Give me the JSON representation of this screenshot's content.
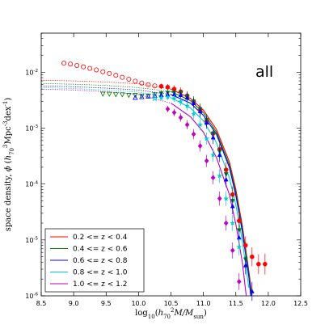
{
  "chart_data": {
    "type": "scatter",
    "title": "",
    "annotation": "all",
    "xlabel": "log$_{10}$($h_{70}^2M/M_{\\rm sun}$)",
    "ylabel": "space density, $\\phi$ ($h_{70}^3$Mpc$^{-3}$dex$^{-1}$)",
    "xlim": [
      8.5,
      12.5
    ],
    "ylim": [
      1e-06,
      0.05
    ],
    "yscale": "log",
    "xticks": [
      "8.5",
      "9.0",
      "9.5",
      "10.0",
      "10.5",
      "11.0",
      "11.5",
      "12.0",
      "12.5"
    ],
    "yticks": [
      "10$^{-6}$",
      "10$^{-5}$",
      "10$^{-4}$",
      "10$^{-3}$",
      "10$^{-2}$"
    ],
    "legend_position": "lower-left",
    "series": [
      {
        "name": "0.2 <= z < 0.4",
        "color": "#ff0000",
        "marker": "circle",
        "incomplete_x": [
          8.85,
          8.95,
          9.05,
          9.15,
          9.25,
          9.35,
          9.45,
          9.55,
          9.65,
          9.75,
          9.85,
          9.95,
          10.05,
          10.15,
          10.25
        ],
        "incomplete_y": [
          0.0145,
          0.014,
          0.0132,
          0.0125,
          0.0117,
          0.011,
          0.0102,
          0.0095,
          0.0088,
          0.0081,
          0.0075,
          0.0069,
          0.0064,
          0.006,
          0.0057
        ],
        "x": [
          10.35,
          10.45,
          10.55,
          10.65,
          10.75,
          10.85,
          10.95,
          11.05,
          11.15,
          11.25,
          11.35,
          11.45,
          11.55,
          11.65,
          11.75,
          11.85,
          11.95
        ],
        "y": [
          0.0056,
          0.0054,
          0.005,
          0.0045,
          0.0038,
          0.003,
          0.0021,
          0.00135,
          0.0008,
          0.00042,
          0.00018,
          6.5e-05,
          2.2e-05,
          8e-06,
          5e-06,
          3.7e-06,
          3.7e-06
        ],
        "curve_x": [
          8.5,
          9.0,
          9.5,
          10.0,
          10.5,
          10.8,
          11.0,
          11.2,
          11.4,
          11.5,
          11.6,
          11.7,
          11.75
        ],
        "curve_y": [
          0.0072,
          0.007,
          0.0067,
          0.0062,
          0.005,
          0.0034,
          0.0021,
          0.00095,
          0.00025,
          8e-05,
          1.8e-05,
          2.8e-06,
          1e-06
        ]
      },
      {
        "name": "0.4 <= z < 0.6",
        "color": "#008000",
        "marker": "triangle-down",
        "incomplete_x": [
          9.45,
          9.55,
          9.65,
          9.75,
          9.85,
          9.95,
          10.05,
          10.15,
          10.25
        ],
        "incomplete_y": [
          0.0041,
          0.0041,
          0.004,
          0.004,
          0.0039,
          0.0039,
          0.0038,
          0.0038,
          0.004
        ],
        "x": [
          10.35,
          10.45,
          10.55,
          10.65,
          10.75,
          10.85,
          10.95,
          11.05,
          11.15,
          11.25,
          11.35,
          11.45,
          11.55,
          11.65
        ],
        "y": [
          0.0042,
          0.0043,
          0.0043,
          0.0042,
          0.0037,
          0.003,
          0.0022,
          0.0014,
          0.0008,
          0.00038,
          0.00015,
          5e-05,
          1.5e-05,
          4.5e-06
        ],
        "curve_x": [
          8.5,
          9.0,
          9.5,
          10.0,
          10.5,
          10.8,
          11.0,
          11.2,
          11.4,
          11.5,
          11.6,
          11.7,
          11.74
        ],
        "curve_y": [
          0.0063,
          0.0061,
          0.0058,
          0.0053,
          0.0045,
          0.0031,
          0.0019,
          0.00085,
          0.00022,
          7e-05,
          1.6e-05,
          2.5e-06,
          1e-06
        ]
      },
      {
        "name": "0.6 <= z < 0.8",
        "color": "#0000ff",
        "marker": "triangle-up",
        "incomplete_x": [
          9.95,
          10.05,
          10.15,
          10.25
        ],
        "incomplete_y": [
          0.0035,
          0.0036,
          0.0037,
          0.0038
        ],
        "x": [
          10.35,
          10.45,
          10.55,
          10.65,
          10.75,
          10.85,
          10.95,
          11.05,
          11.15,
          11.25,
          11.35,
          11.45,
          11.55,
          11.65,
          11.75
        ],
        "y": [
          0.0039,
          0.004,
          0.004,
          0.0039,
          0.0035,
          0.0028,
          0.002,
          0.00125,
          0.00068,
          0.00033,
          0.00012,
          4e-05,
          1.1e-05,
          3.5e-06,
          1.2e-06
        ],
        "curve_x": [
          8.5,
          9.0,
          9.5,
          10.0,
          10.5,
          10.8,
          11.0,
          11.2,
          11.4,
          11.5,
          11.6,
          11.7,
          11.73
        ],
        "curve_y": [
          0.0057,
          0.0055,
          0.0052,
          0.0048,
          0.004,
          0.0028,
          0.0017,
          0.00078,
          0.0002,
          6.2e-05,
          1.4e-05,
          2.2e-06,
          1e-06
        ]
      },
      {
        "name": "0.8 <= z < 1.0",
        "color": "#00cccc",
        "marker": "star",
        "incomplete_x": [
          10.25
        ],
        "incomplete_y": [
          0.0034
        ],
        "x": [
          10.35,
          10.45,
          10.55,
          10.65,
          10.75,
          10.85,
          10.95,
          11.05,
          11.15,
          11.25,
          11.35,
          11.45,
          11.55
        ],
        "y": [
          0.0035,
          0.0036,
          0.0034,
          0.003,
          0.0025,
          0.0018,
          0.00115,
          0.00065,
          0.00033,
          0.00014,
          5.5e-05,
          2e-05,
          7.5e-06
        ],
        "curve_x": [
          8.5,
          9.0,
          9.5,
          10.0,
          10.5,
          10.8,
          11.0,
          11.2,
          11.4,
          11.5,
          11.6,
          11.7
        ],
        "curve_y": [
          0.0053,
          0.0051,
          0.0048,
          0.0044,
          0.0035,
          0.0023,
          0.00135,
          0.00055,
          0.00013,
          4.2e-05,
          9.5e-06,
          1.4e-06
        ]
      },
      {
        "name": "1.0 <= z < 1.2",
        "color": "#bf00bf",
        "marker": "diamond",
        "incomplete_x": [],
        "incomplete_y": [],
        "x": [
          10.45,
          10.55,
          10.65,
          10.75,
          10.85,
          10.95,
          11.05,
          11.15,
          11.25,
          11.35,
          11.45,
          11.55
        ],
        "y": [
          0.0022,
          0.0019,
          0.00155,
          0.00115,
          0.00078,
          0.00048,
          0.00026,
          0.00013,
          5.5e-05,
          2e-05,
          6.5e-06,
          1.8e-06
        ],
        "curve_x": [
          8.5,
          9.0,
          9.5,
          10.0,
          10.5,
          10.8,
          11.0,
          11.2,
          11.4,
          11.5,
          11.6,
          11.66
        ],
        "curve_y": [
          0.005,
          0.0048,
          0.0045,
          0.004,
          0.0028,
          0.0016,
          0.00085,
          0.0003,
          6.5e-05,
          1.9e-05,
          4e-06,
          1e-06
        ]
      }
    ]
  }
}
